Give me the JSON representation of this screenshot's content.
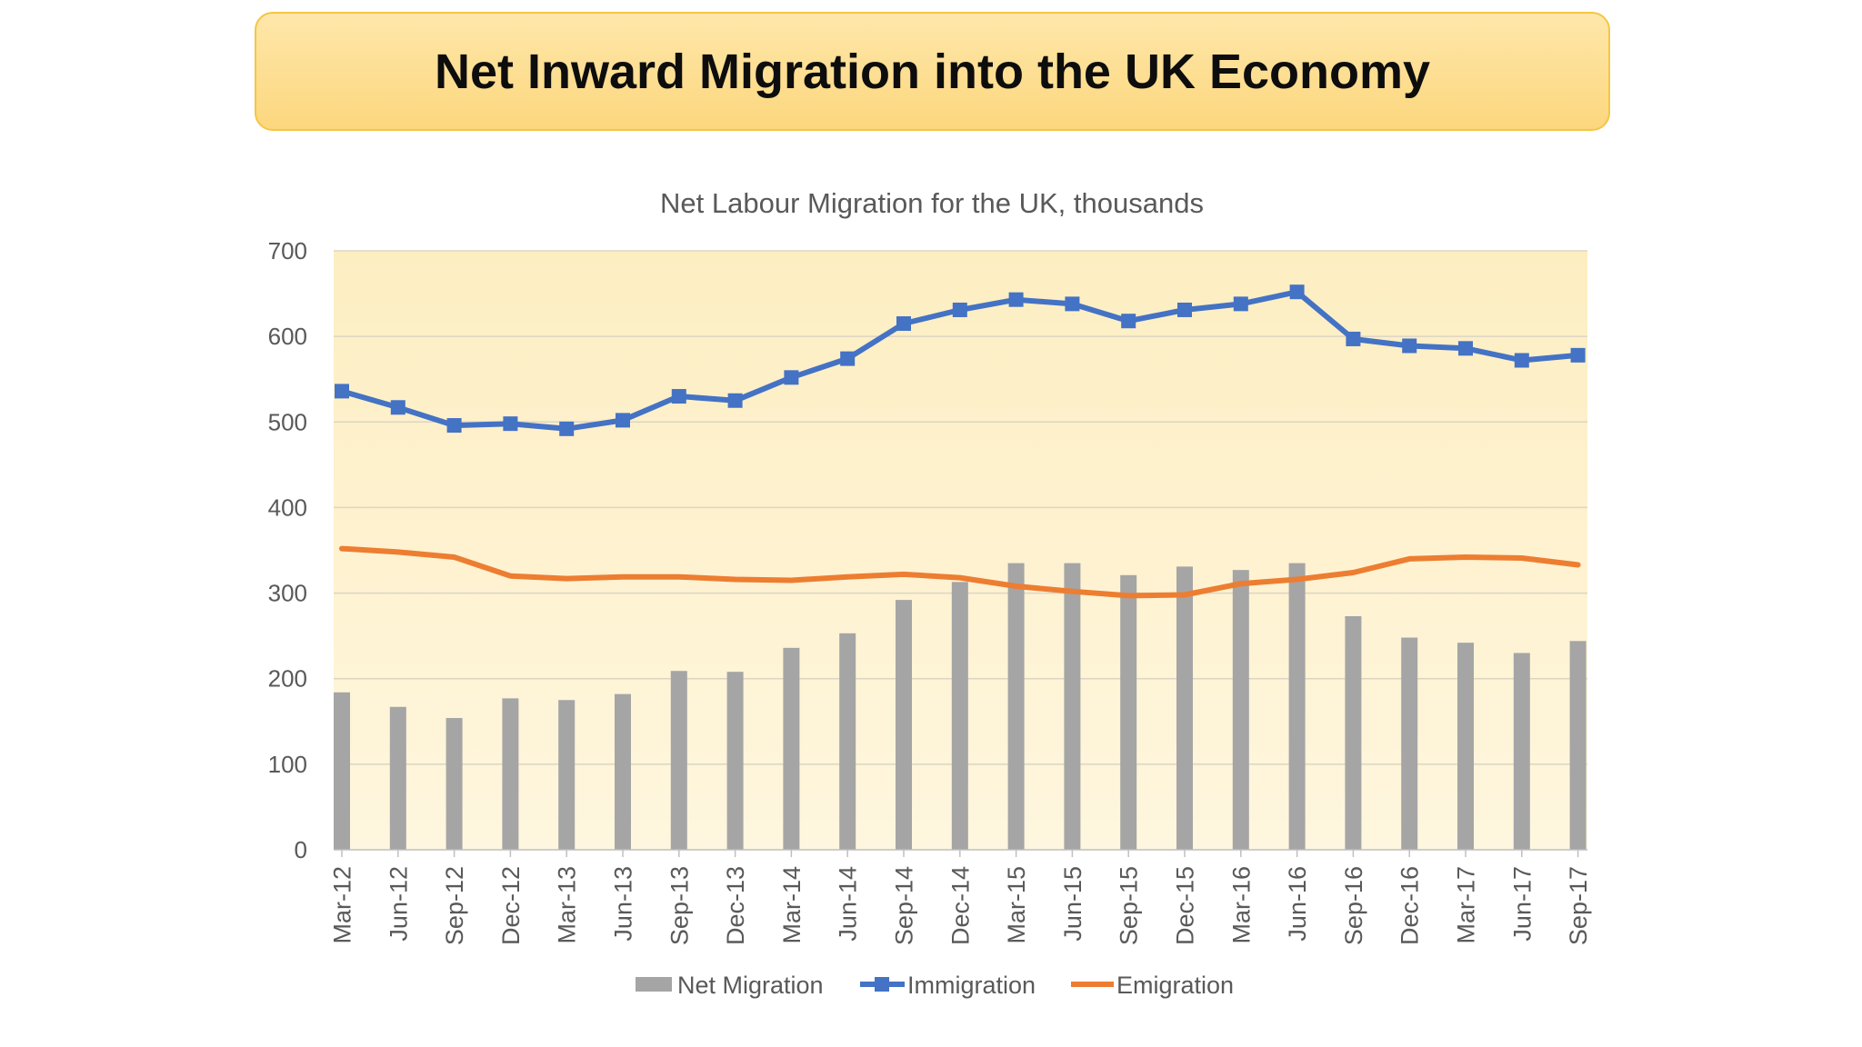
{
  "slide": {
    "title": "Net Inward Migration into the UK Economy"
  },
  "chart_data": {
    "type": "bar",
    "title": "Net Labour Migration for the UK, thousands",
    "categories": [
      "Mar-12",
      "Jun-12",
      "Sep-12",
      "Dec-12",
      "Mar-13",
      "Jun-13",
      "Sep-13",
      "Dec-13",
      "Mar-14",
      "Jun-14",
      "Sep-14",
      "Dec-14",
      "Mar-15",
      "Jun-15",
      "Sep-15",
      "Dec-15",
      "Mar-16",
      "Jun-16",
      "Sep-16",
      "Dec-16",
      "Mar-17",
      "Jun-17",
      "Sep-17"
    ],
    "series": [
      {
        "name": "Net Migration",
        "type": "bar",
        "color": "#a5a5a5",
        "values": [
          184,
          167,
          154,
          177,
          175,
          182,
          209,
          208,
          236,
          253,
          292,
          313,
          335,
          335,
          321,
          331,
          327,
          335,
          273,
          248,
          242,
          230,
          244
        ]
      },
      {
        "name": "Immigration",
        "type": "line",
        "marker": "square",
        "color": "#4472c4",
        "values": [
          536,
          517,
          496,
          498,
          492,
          502,
          530,
          525,
          552,
          574,
          615,
          631,
          643,
          638,
          618,
          631,
          638,
          652,
          597,
          589,
          586,
          572,
          578
        ]
      },
      {
        "name": "Emigration",
        "type": "line",
        "marker": "none",
        "color": "#ed7d31",
        "values": [
          352,
          348,
          342,
          320,
          317,
          319,
          319,
          316,
          315,
          319,
          322,
          318,
          308,
          302,
          297,
          298,
          311,
          316,
          324,
          340,
          342,
          341,
          333
        ]
      }
    ],
    "ylim": [
      0,
      700
    ],
    "yticks": [
      0,
      100,
      200,
      300,
      400,
      500,
      600,
      700
    ],
    "grid": true,
    "legend": "bottom"
  }
}
